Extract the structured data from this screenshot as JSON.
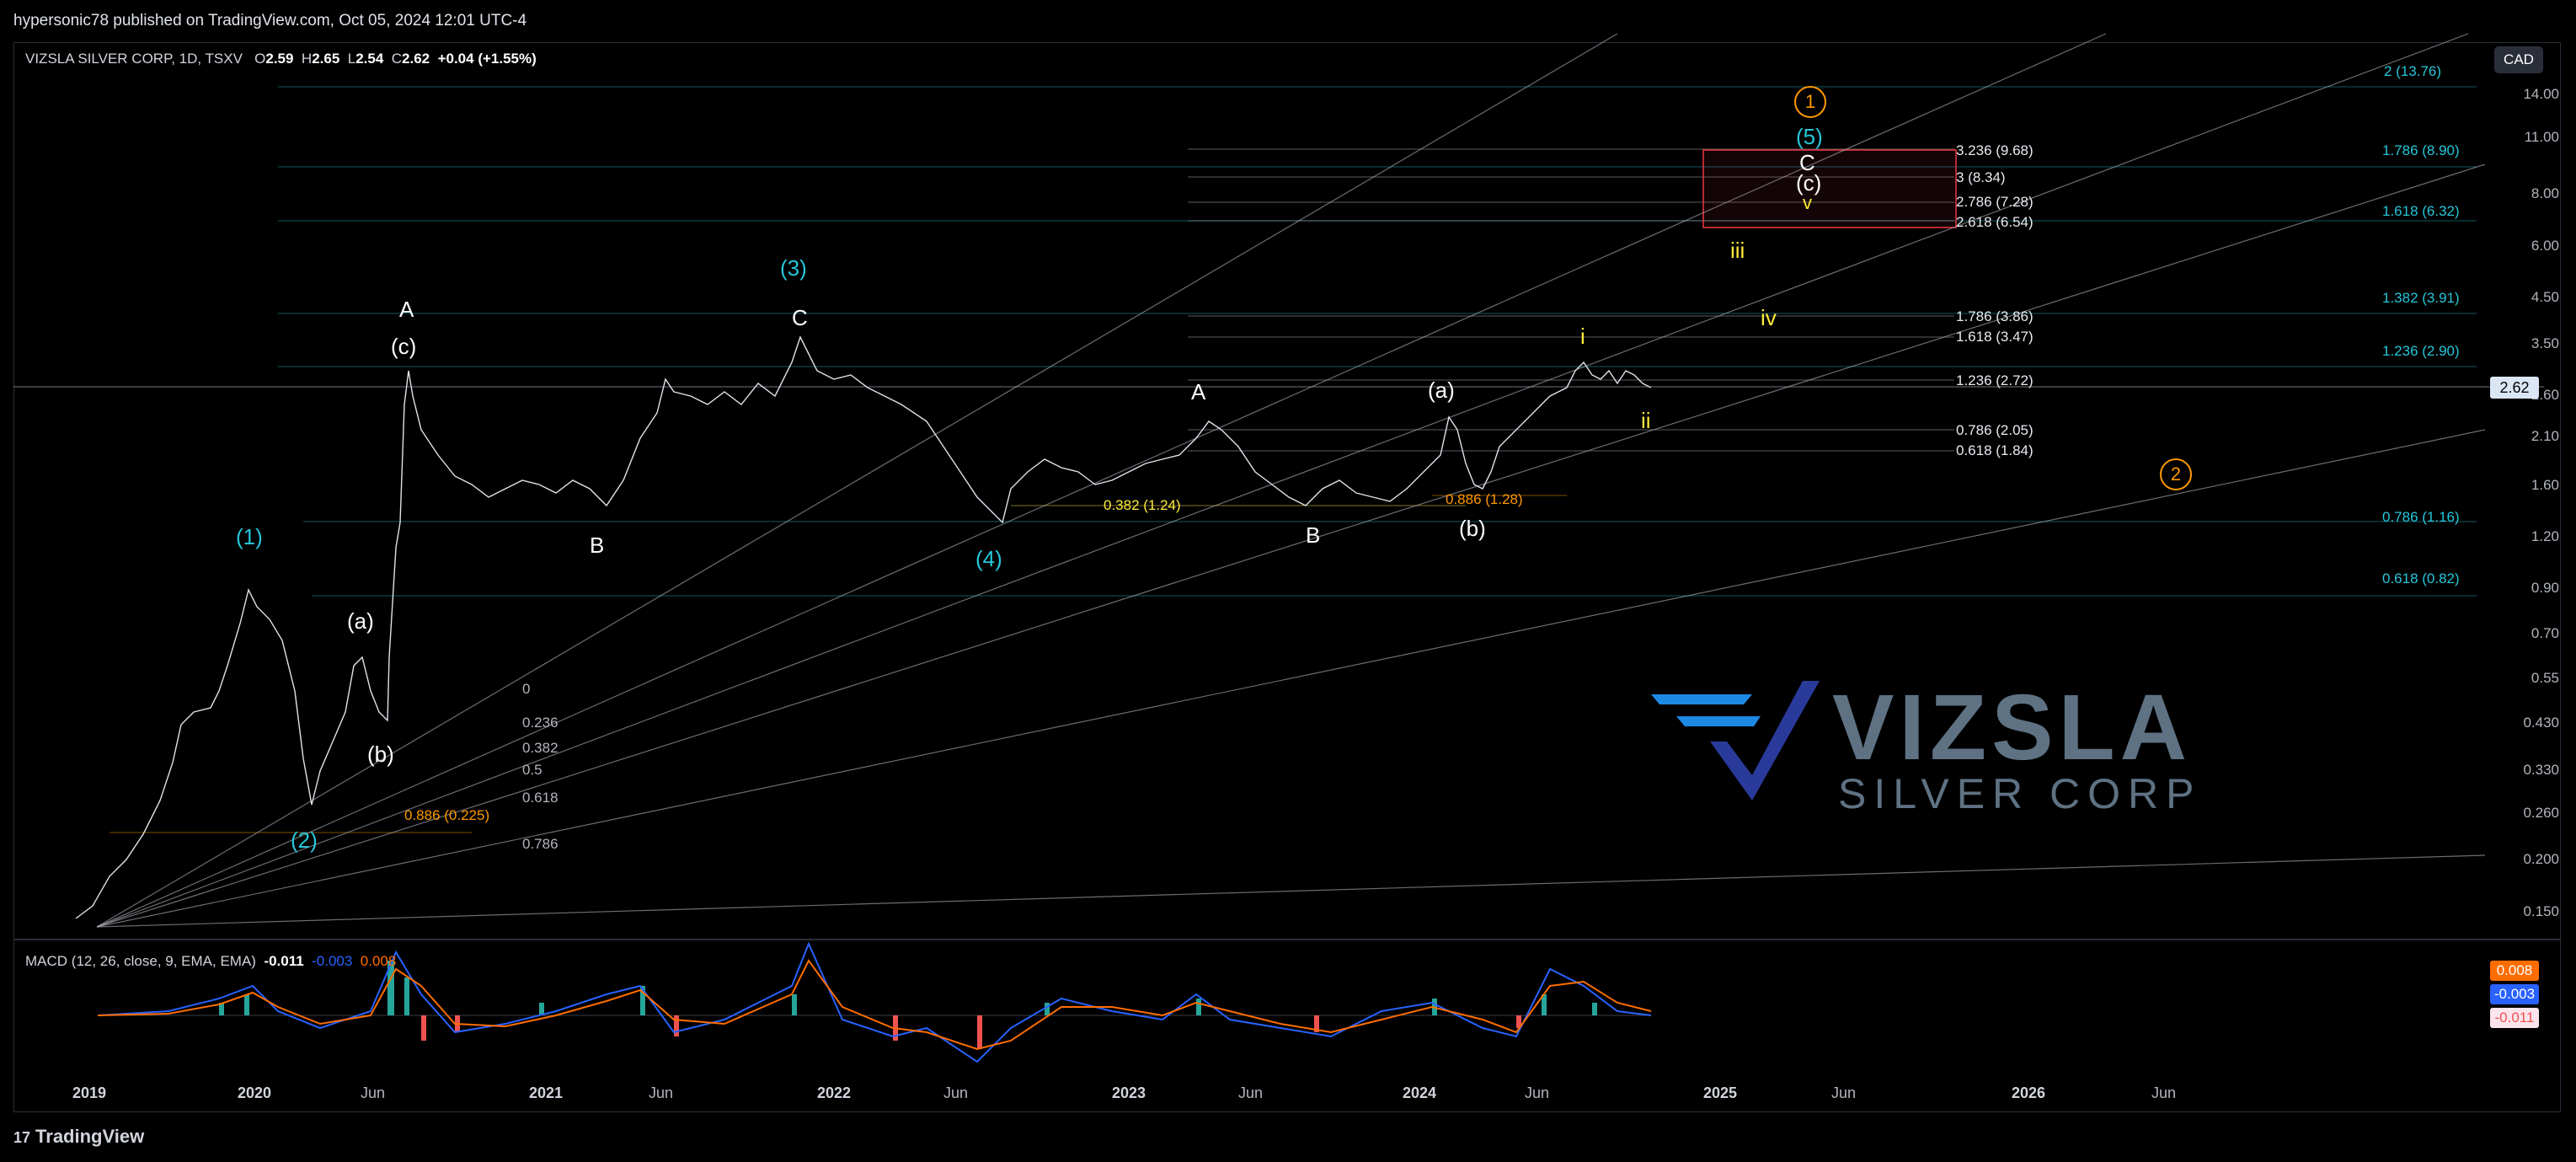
{
  "header": {
    "published": "hypersonic78 published on TradingView.com, Oct 05, 2024 12:01 UTC-4"
  },
  "legend": {
    "symbol": "VIZSLA SILVER CORP, 1D, TSXV",
    "o_label": "O",
    "o_value": "2.59",
    "h_label": "H",
    "h_value": "2.65",
    "l_label": "L",
    "l_value": "2.54",
    "c_label": "C",
    "c_value": "2.62",
    "change": "+0.04 (+1.55%)"
  },
  "currency": "CAD",
  "last_price": "2.62",
  "y_axis": [
    "14.00",
    "11.00",
    "8.00",
    "6.00",
    "4.50",
    "3.50",
    "2.60",
    "2.10",
    "1.60",
    "1.20",
    "0.90",
    "0.70",
    "0.55",
    "0.430",
    "0.330",
    "0.260",
    "0.200",
    "0.150"
  ],
  "x_axis": [
    {
      "label": "2019",
      "bold": true
    },
    {
      "label": "2020",
      "bold": true
    },
    {
      "label": "Jun",
      "bold": false
    },
    {
      "label": "2021",
      "bold": true
    },
    {
      "label": "Jun",
      "bold": false
    },
    {
      "label": "2022",
      "bold": true
    },
    {
      "label": "Jun",
      "bold": false
    },
    {
      "label": "2023",
      "bold": true
    },
    {
      "label": "Jun",
      "bold": false
    },
    {
      "label": "2024",
      "bold": true
    },
    {
      "label": "Jun",
      "bold": false
    },
    {
      "label": "2025",
      "bold": true
    },
    {
      "label": "Jun",
      "bold": false
    },
    {
      "label": "2026",
      "bold": true
    },
    {
      "label": "Jun",
      "bold": false
    }
  ],
  "macd": {
    "title": "MACD (12, 26, close, 9, EMA, EMA)",
    "v1": "-0.011",
    "v2": "-0.003",
    "v3": "0.008",
    "tag_hist": "0.008",
    "tag_macd": "-0.003",
    "tag_signal": "-0.011",
    "colors": {
      "macd": "#2962ff",
      "signal": "#ff6d00",
      "hist_up": "#26a69a",
      "hist_down": "#ef5350"
    }
  },
  "fan_labels": [
    "0",
    "0.236",
    "0.382",
    "0.5",
    "0.618",
    "0.786"
  ],
  "fib_right_cyan": [
    "2 (13.76)",
    "1.786 (8.90)",
    "1.618 (6.32)",
    "1.382 (3.91)",
    "1.236 (2.90)",
    "0.786 (1.16)",
    "0.618 (0.82)"
  ],
  "fib_mid_white": [
    "3.236 (9.68)",
    "3 (8.34)",
    "2.786 (7.28)",
    "2.618 (6.54)",
    "1.786 (3.86)",
    "1.618 (3.47)",
    "1.236 (2.72)",
    "0.786 (2.05)",
    "0.618 (1.84)"
  ],
  "fib_orange": [
    "0.886 (0.225)",
    "0.886 (1.28)"
  ],
  "fib_yellow": [
    "0.382 (1.24)"
  ],
  "wave_labels": {
    "cyan": [
      "(1)",
      "(2)",
      "(3)",
      "(4)",
      "(5)"
    ],
    "white": [
      "A",
      "(c)",
      "B",
      "C",
      "(a)",
      "(b)",
      "A",
      "B",
      "(a)",
      "(b)",
      "C",
      "(c)"
    ],
    "yellow": [
      "iii",
      "iv",
      "i",
      "ii",
      "v"
    ],
    "orange_circled": [
      "1",
      "2"
    ]
  },
  "logo": {
    "main": "VIZSLA",
    "sub": "SILVER CORP"
  },
  "footer": {
    "brand": "TradingView"
  },
  "colors": {
    "cyan": "#26c6da",
    "orange": "#ff9800",
    "yellow": "#ffeb3b",
    "box_border": "#f23645"
  }
}
